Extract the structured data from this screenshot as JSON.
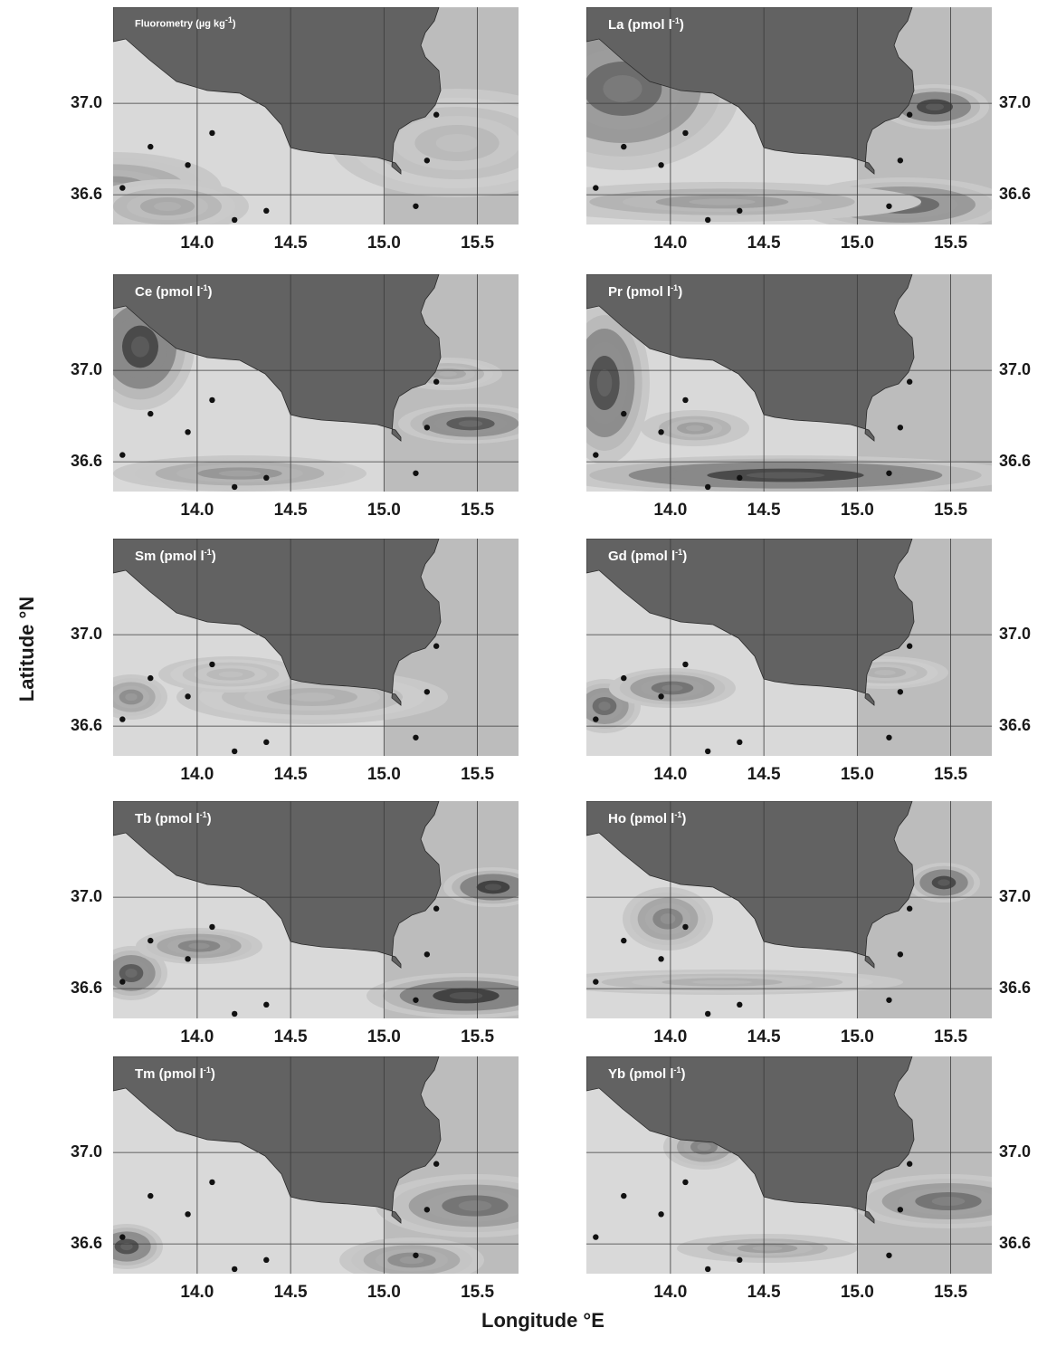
{
  "axes": {
    "x_title": "Longitude °E",
    "y_title": "Latitude °N",
    "x_ticks": [
      "14.0",
      "14.5",
      "15.0",
      "15.5"
    ],
    "y_ticks": [
      "37.0",
      "36.6"
    ]
  },
  "panels": [
    {
      "label": "Fluorometry (µg kg",
      "unit_exp": "-1",
      "unit_close": ")"
    },
    {
      "label": "La (pmol l",
      "unit_exp": "-1",
      "unit_close": ")"
    },
    {
      "label": "Ce (pmol l",
      "unit_exp": "-1",
      "unit_close": ")"
    },
    {
      "label": "Pr (pmol l",
      "unit_exp": "-1",
      "unit_close": ")"
    },
    {
      "label": "Sm (pmol l",
      "unit_exp": "-1",
      "unit_close": ")"
    },
    {
      "label": "Gd (pmol l",
      "unit_exp": "-1",
      "unit_close": ")"
    },
    {
      "label": "Tb (pmol l",
      "unit_exp": "-1",
      "unit_close": ")"
    },
    {
      "label": "Ho (pmol l",
      "unit_exp": "-1",
      "unit_close": ")"
    },
    {
      "label": "Tm (pmol l",
      "unit_exp": "-1",
      "unit_close": ")"
    },
    {
      "label": "Yb (pmol l",
      "unit_exp": "-1",
      "unit_close": ")"
    }
  ],
  "colors": {
    "land": "#626262",
    "sea_light": "#d9d9d9",
    "sea_dark": "#2e2e2e",
    "grid": "#3a3a3a",
    "station": "#111111"
  },
  "stations_lonlat": [
    [
      13.6,
      36.63
    ],
    [
      13.75,
      36.81
    ],
    [
      13.95,
      36.73
    ],
    [
      14.08,
      36.87
    ],
    [
      14.2,
      36.49
    ],
    [
      14.37,
      36.53
    ],
    [
      15.17,
      36.55
    ],
    [
      15.23,
      36.75
    ],
    [
      15.28,
      36.95
    ]
  ],
  "extent": {
    "lon": [
      13.55,
      15.72
    ],
    "lat": [
      36.47,
      37.42
    ]
  }
}
